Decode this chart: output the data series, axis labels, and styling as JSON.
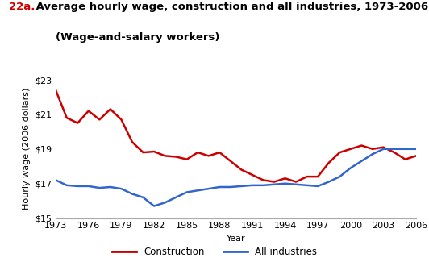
{
  "title_prefix": "22a.",
  "title_prefix_color": "#cc0000",
  "title_main": " Average hourly wage, construction and all industries, 1973-2006",
  "title_sub": "(Wage-and-salary workers)",
  "xlabel": "Year",
  "ylabel": "Hourly wage (2006 dollars)",
  "ylim": [
    15,
    23
  ],
  "yticks": [
    15,
    17,
    19,
    21,
    23
  ],
  "ytick_labels": [
    "$15",
    "$17",
    "$19",
    "$21",
    "$23"
  ],
  "xticks": [
    1973,
    1976,
    1979,
    1982,
    1985,
    1988,
    1991,
    1994,
    1997,
    2000,
    2003,
    2006
  ],
  "construction_color": "#cc0000",
  "allindustries_color": "#3366cc",
  "line_width": 1.8,
  "years": [
    1973,
    1974,
    1975,
    1976,
    1977,
    1978,
    1979,
    1980,
    1981,
    1982,
    1983,
    1984,
    1985,
    1986,
    1987,
    1988,
    1989,
    1990,
    1991,
    1992,
    1993,
    1994,
    1995,
    1996,
    1997,
    1998,
    1999,
    2000,
    2001,
    2002,
    2003,
    2004,
    2005,
    2006
  ],
  "construction": [
    22.4,
    20.8,
    20.5,
    21.2,
    20.7,
    21.3,
    20.7,
    19.4,
    18.8,
    18.85,
    18.6,
    18.55,
    18.4,
    18.8,
    18.6,
    18.8,
    18.3,
    17.8,
    17.5,
    17.2,
    17.1,
    17.3,
    17.1,
    17.4,
    17.4,
    18.2,
    18.8,
    19.0,
    19.2,
    19.0,
    19.1,
    18.8,
    18.4,
    18.6
  ],
  "all_industries": [
    17.2,
    16.9,
    16.85,
    16.85,
    16.75,
    16.8,
    16.7,
    16.4,
    16.2,
    15.7,
    15.9,
    16.2,
    16.5,
    16.6,
    16.7,
    16.8,
    16.8,
    16.85,
    16.9,
    16.9,
    16.95,
    17.0,
    16.95,
    16.9,
    16.85,
    17.1,
    17.4,
    17.9,
    18.3,
    18.7,
    19.0,
    19.0,
    19.0,
    19.0
  ],
  "background_color": "#ffffff",
  "legend_construction": "Construction",
  "legend_all": "All industries",
  "title_fontsize": 9.5,
  "axis_fontsize": 8.0,
  "tick_fontsize": 8.0,
  "legend_fontsize": 8.5
}
